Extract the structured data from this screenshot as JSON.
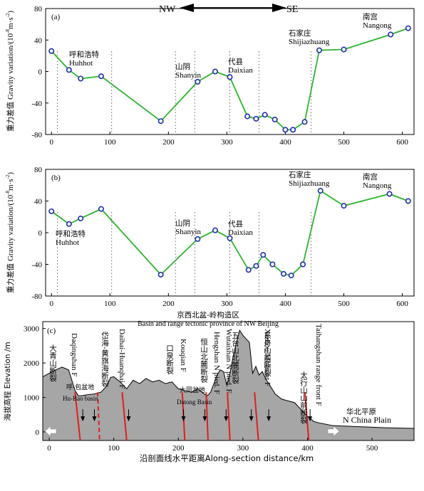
{
  "header": {
    "left": "NW",
    "right": "SE"
  },
  "panels": [
    {
      "label": "(a)",
      "ylabel_cn": "重力差值",
      "ylabel_en": "Gravity variation/(10",
      "ylabel_exp": "-8",
      "ylabel_tail": "m·s",
      "ylabel_exp2": "-2",
      "ylabel_close": ")",
      "places": [
        {
          "cn": "呼和浩特",
          "en": "Huhhot"
        },
        {
          "cn": "山阴",
          "en": "Shanyin"
        },
        {
          "cn": "代县",
          "en": "Daixian"
        },
        {
          "cn": "石家庄",
          "en": "Shijiazhuang"
        },
        {
          "cn": "南宫",
          "en": "Nangong"
        }
      ]
    },
    {
      "label": "(b)",
      "ylabel_cn": "重力差值",
      "ylabel_en": "Gravity variation/(10",
      "ylabel_exp": "-8",
      "ylabel_tail": "m·s",
      "ylabel_exp2": "-2",
      "ylabel_close": ")",
      "places": [
        {
          "cn": "呼和浩特",
          "en": "Huhhot"
        },
        {
          "cn": "山阴",
          "en": "Shanyin"
        },
        {
          "cn": "代县",
          "en": "Daixian"
        },
        {
          "cn": "石家庄",
          "en": "Shijiazhuang"
        },
        {
          "cn": "南宫",
          "en": "Nangong"
        }
      ]
    }
  ],
  "section": {
    "label": "(c)",
    "province_cn": "京西北盆-岭构造区",
    "province_en": "Basin and range tectonic province of NW Beijing",
    "ylabel": "海拔高程 Elevation /m",
    "xlabel": "沿剖面线水平距离Along-section distance/km",
    "plain_cn": "华北平原",
    "plain_en": "N China Plain",
    "basins": [
      {
        "cn": "呼-包盆地",
        "en": "Hu-Bao basin"
      },
      {
        "cn": "大同盆地",
        "en": "Datong Basin"
      }
    ],
    "faults": [
      {
        "cn": "大青山断裂",
        "en": "Daqingshan F"
      },
      {
        "cn": "岱海-黄旗海断裂",
        "en": "Daihai-Huanqhai F"
      },
      {
        "cn": "口泉断裂",
        "en": "Kouqian F"
      },
      {
        "cn": "恒山北麓断裂",
        "en": "Hengshan N pied. F"
      },
      {
        "cn": "五台山北麓断裂",
        "en": "Wutaishan N pied. F"
      },
      {
        "cn": "系舟山前断裂",
        "en": "Xizhou Mt front F"
      },
      {
        "cn": "太行山山前断裂",
        "en": "Taihangshan range front F"
      }
    ]
  },
  "colors": {
    "series": "#2db52d",
    "marker": "#1f2fb0",
    "fault": "#e01f1f",
    "terrain": "#a6a6a6"
  },
  "chart_data": [
    {
      "type": "line",
      "panel": "(a)",
      "xlim": [
        -10,
        620
      ],
      "ylim": [
        -80,
        80
      ],
      "xticks": [
        0,
        100,
        200,
        300,
        400,
        500,
        600
      ],
      "yticks": [
        -80,
        -40,
        0,
        40,
        80
      ],
      "x": [
        0,
        30,
        50,
        85,
        187,
        250,
        280,
        305,
        335,
        350,
        365,
        382,
        400,
        413,
        433,
        458,
        500,
        580,
        610
      ],
      "y": [
        26,
        2,
        -9,
        -6,
        -63,
        -13,
        0,
        -7,
        -57,
        -60,
        -55,
        -61,
        -74,
        -74,
        -64,
        27,
        28,
        47,
        55
      ],
      "xlabel": "",
      "ylabel": "重力差值 Gravity variation/(10^-8 m·s^-2)"
    },
    {
      "type": "line",
      "panel": "(b)",
      "xlim": [
        -10,
        620
      ],
      "ylim": [
        -80,
        80
      ],
      "xticks": [
        0,
        100,
        200,
        300,
        400,
        500,
        600
      ],
      "yticks": [
        -80,
        -40,
        0,
        40,
        80
      ],
      "x": [
        0,
        30,
        50,
        85,
        187,
        250,
        280,
        305,
        337,
        350,
        362,
        378,
        397,
        410,
        430,
        460,
        500,
        578,
        610
      ],
      "y": [
        27,
        11,
        18,
        30,
        -53,
        -8,
        3,
        -7,
        -47,
        -42,
        -28,
        -40,
        -52,
        -54,
        -40,
        53,
        34,
        49,
        40
      ],
      "xlabel": "",
      "ylabel": "重力差值 Gravity variation/(10^-8 m·s^-2)"
    },
    {
      "type": "area",
      "panel": "(c)",
      "xlim": [
        -10,
        565
      ],
      "ylim": [
        -250,
        3200
      ],
      "xticks": [
        0,
        100,
        200,
        300,
        400,
        500
      ],
      "yticks": [
        0,
        1000,
        2000,
        3000
      ],
      "x": [
        -10,
        0,
        10,
        20,
        30,
        40,
        45,
        50,
        60,
        70,
        80,
        90,
        95,
        100,
        110,
        120,
        130,
        140,
        150,
        160,
        170,
        180,
        190,
        200,
        210,
        220,
        230,
        240,
        245,
        250,
        255,
        260,
        265,
        270,
        275,
        280,
        285,
        290,
        295,
        300,
        310,
        315,
        320,
        325,
        330,
        335,
        340,
        350,
        360,
        370,
        380,
        390,
        400,
        410,
        420,
        440,
        480,
        520,
        565
      ],
      "y": [
        1600,
        1700,
        1800,
        1880,
        1800,
        1200,
        1050,
        1050,
        1080,
        1100,
        1150,
        1350,
        1580,
        1600,
        1450,
        1250,
        1500,
        1400,
        1550,
        1450,
        1500,
        1400,
        1450,
        1250,
        1200,
        1150,
        1250,
        1100,
        1050,
        1150,
        1400,
        1650,
        1800,
        1750,
        1350,
        1700,
        2200,
        2600,
        2950,
        2800,
        2600,
        1700,
        1900,
        1650,
        1750,
        1550,
        1400,
        1100,
        950,
        900,
        850,
        650,
        450,
        300,
        250,
        180,
        150,
        120,
        100
      ],
      "xlabel": "沿剖面线水平距离Along-section distance/km",
      "ylabel": "海拔高程 Elevation /m"
    }
  ]
}
